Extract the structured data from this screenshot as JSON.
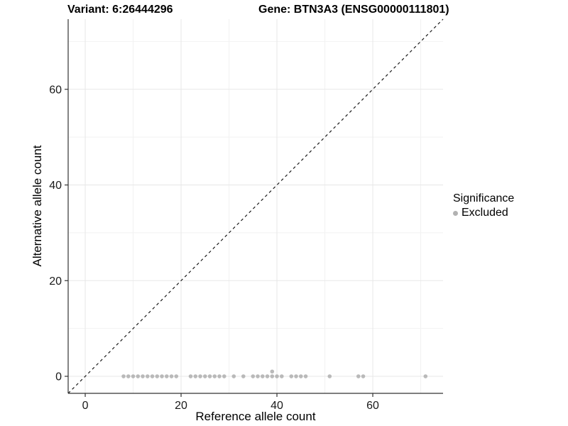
{
  "chart_data": {
    "type": "scatter",
    "titles": {
      "variant": "Variant: 6:26444296",
      "gene": "Gene: BTN3A3 (ENSG00000111801)"
    },
    "xlabel": "Reference allele count",
    "ylabel": "Alternative allele count",
    "xlim": [
      -3.56,
      74.66
    ],
    "ylim": [
      -3.56,
      74.66
    ],
    "x_major_ticks": [
      0,
      20,
      40,
      60
    ],
    "y_major_ticks": [
      0,
      20,
      40,
      60
    ],
    "x_minor_ticks": [
      10,
      30,
      50,
      70
    ],
    "y_minor_ticks": [
      10,
      30,
      50,
      70
    ],
    "grid": true,
    "legend_position": "right",
    "identity_line": {
      "slope": 1,
      "intercept": 0,
      "style": "dashed",
      "color": "#1a1a1a"
    },
    "legend": {
      "title": "Significance",
      "items": [
        {
          "label": "Excluded",
          "color": "#b2b2b2"
        }
      ]
    },
    "series": [
      {
        "name": "Excluded",
        "color": "#b2b2b2",
        "points": [
          [
            8,
            0
          ],
          [
            9,
            0
          ],
          [
            10,
            0
          ],
          [
            11,
            0
          ],
          [
            12,
            0
          ],
          [
            13,
            0
          ],
          [
            14,
            0
          ],
          [
            15,
            0
          ],
          [
            16,
            0
          ],
          [
            17,
            0
          ],
          [
            18,
            0
          ],
          [
            19,
            0
          ],
          [
            22,
            0
          ],
          [
            23,
            0
          ],
          [
            24,
            0
          ],
          [
            25,
            0
          ],
          [
            26,
            0
          ],
          [
            27,
            0
          ],
          [
            28,
            0
          ],
          [
            29,
            0
          ],
          [
            31,
            0
          ],
          [
            33,
            0
          ],
          [
            35,
            0
          ],
          [
            36,
            0
          ],
          [
            37,
            0
          ],
          [
            38,
            0
          ],
          [
            39,
            0
          ],
          [
            40,
            0
          ],
          [
            41,
            0
          ],
          [
            39,
            1
          ],
          [
            43,
            0
          ],
          [
            44,
            0
          ],
          [
            45,
            0
          ],
          [
            46,
            0
          ],
          [
            51,
            0
          ],
          [
            57,
            0
          ],
          [
            58,
            0
          ],
          [
            71,
            0
          ]
        ]
      }
    ],
    "colors": {
      "grid_major": "#e7e7e7",
      "grid_minor": "#f2f2f2",
      "axis_line": "#333333",
      "tick": "#333333",
      "tick_label": "#1a1a1a",
      "point": "#b2b2b2"
    }
  }
}
